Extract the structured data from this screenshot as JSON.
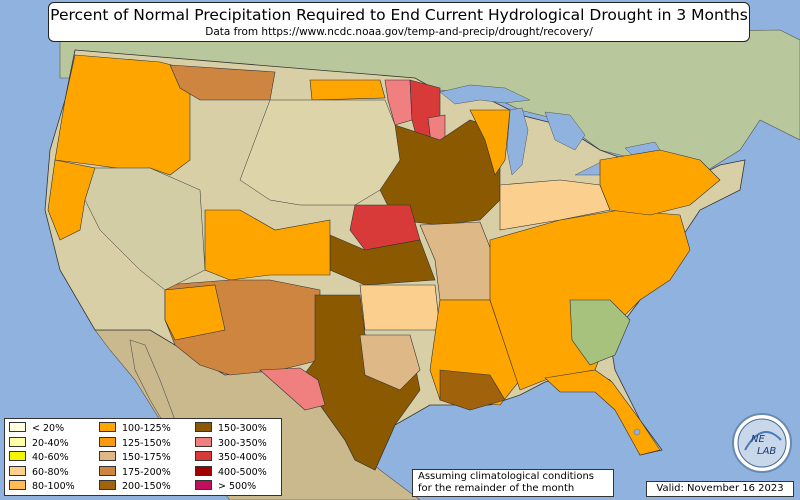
{
  "header": {
    "title": "Percent of Normal Precipitation Required to End Current Hydrological Drought in 3 Months",
    "subtitle": "Data from https://www.ncdc.noaa.gov/temp-and-precip/drought/recovery/"
  },
  "legend": {
    "items": [
      {
        "label": "< 20%",
        "color": "#ffffe0"
      },
      {
        "label": "20-40%",
        "color": "#ffffa8"
      },
      {
        "label": "40-60%",
        "color": "#f5f500"
      },
      {
        "label": "60-80%",
        "color": "#fbcf8e"
      },
      {
        "label": "80-100%",
        "color": "#ffbb55"
      },
      {
        "label": "100-125%",
        "color": "#ffa500"
      },
      {
        "label": "125-150%",
        "color": "#fb9a10"
      },
      {
        "label": "150-175%",
        "color": "#deb887"
      },
      {
        "label": "175-200%",
        "color": "#cd853f"
      },
      {
        "label": "200-150%",
        "color": "#a0620a"
      },
      {
        "label": "150-300%",
        "color": "#8b5a00"
      },
      {
        "label": "300-350%",
        "color": "#f08080"
      },
      {
        "label": "350-400%",
        "color": "#d83a3a"
      },
      {
        "label": "400-500%",
        "color": "#a00000"
      },
      {
        "label": "> 500%",
        "color": "#c0105a"
      }
    ]
  },
  "footer": {
    "note_line1": "Assuming climatological conditions",
    "note_line2": "for the remainder of the month",
    "valid": "Valid: November 16 2023"
  },
  "logo": {
    "text_top": "NE",
    "text_bottom": "LAB"
  },
  "colors": {
    "ocean": "#8fb3de",
    "land_green": "#a6c27c",
    "land_tan": "#d7cfa9",
    "mexico": "#c8b98c",
    "canada": "#b6c59a"
  }
}
